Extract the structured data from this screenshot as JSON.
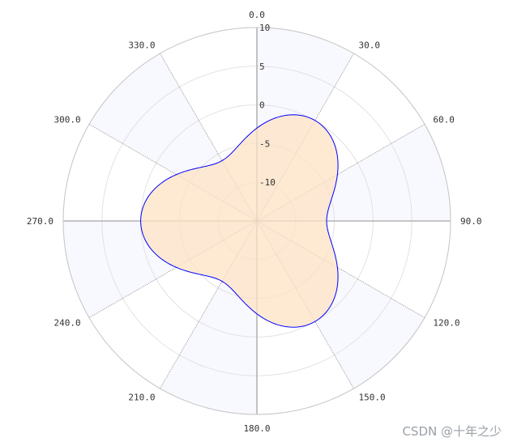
{
  "chart_data": {
    "type": "polar-line",
    "angle_direction": "clockwise",
    "angle_zero": "top",
    "angle_tick_labels": [
      "0.0",
      "30.0",
      "60.0",
      "90.0",
      "120.0",
      "150.0",
      "180.0",
      "210.0",
      "240.0",
      "270.0",
      "300.0",
      "330.0"
    ],
    "radius_axis": {
      "min": -15,
      "max": 10,
      "tick_labels": [
        "10",
        "5",
        "0",
        "-5",
        "-10"
      ],
      "tick_values": [
        10,
        5,
        0,
        -5,
        -10
      ]
    },
    "series": [
      {
        "formula": "r = 3*sin(3*theta) - 3",
        "theta_range_deg": [
          0,
          360
        ],
        "color_line": "#0000ff",
        "color_fill": "#fde3c4"
      }
    ],
    "split_area_colors": [
      "#f8f8ff",
      "#ffffff"
    ],
    "grid": true
  },
  "watermark": "CSDN @十年之少"
}
